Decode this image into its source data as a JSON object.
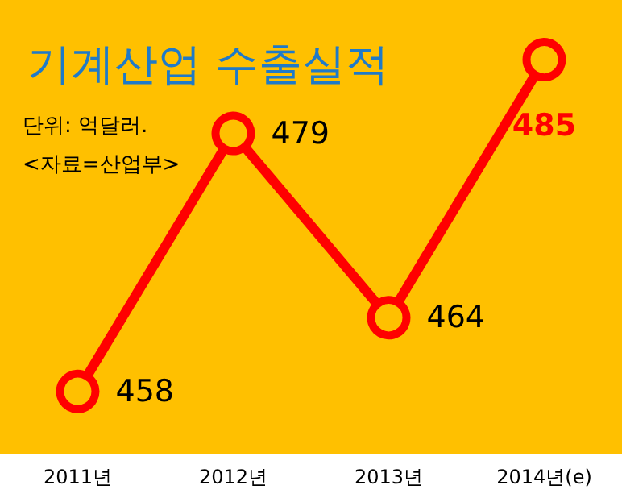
{
  "chart_data": {
    "type": "line",
    "title": "기계산업 수출실적",
    "annotations": [
      "단위: 억달러.",
      "<자료=산업부>"
    ],
    "categories": [
      "2011년",
      "2012년",
      "2013년",
      "2014년(e)"
    ],
    "series": [
      {
        "color": "#ff0000",
        "values": [
          458,
          479,
          464,
          485
        ]
      }
    ],
    "data_labels": true,
    "marker": "circle"
  }
}
